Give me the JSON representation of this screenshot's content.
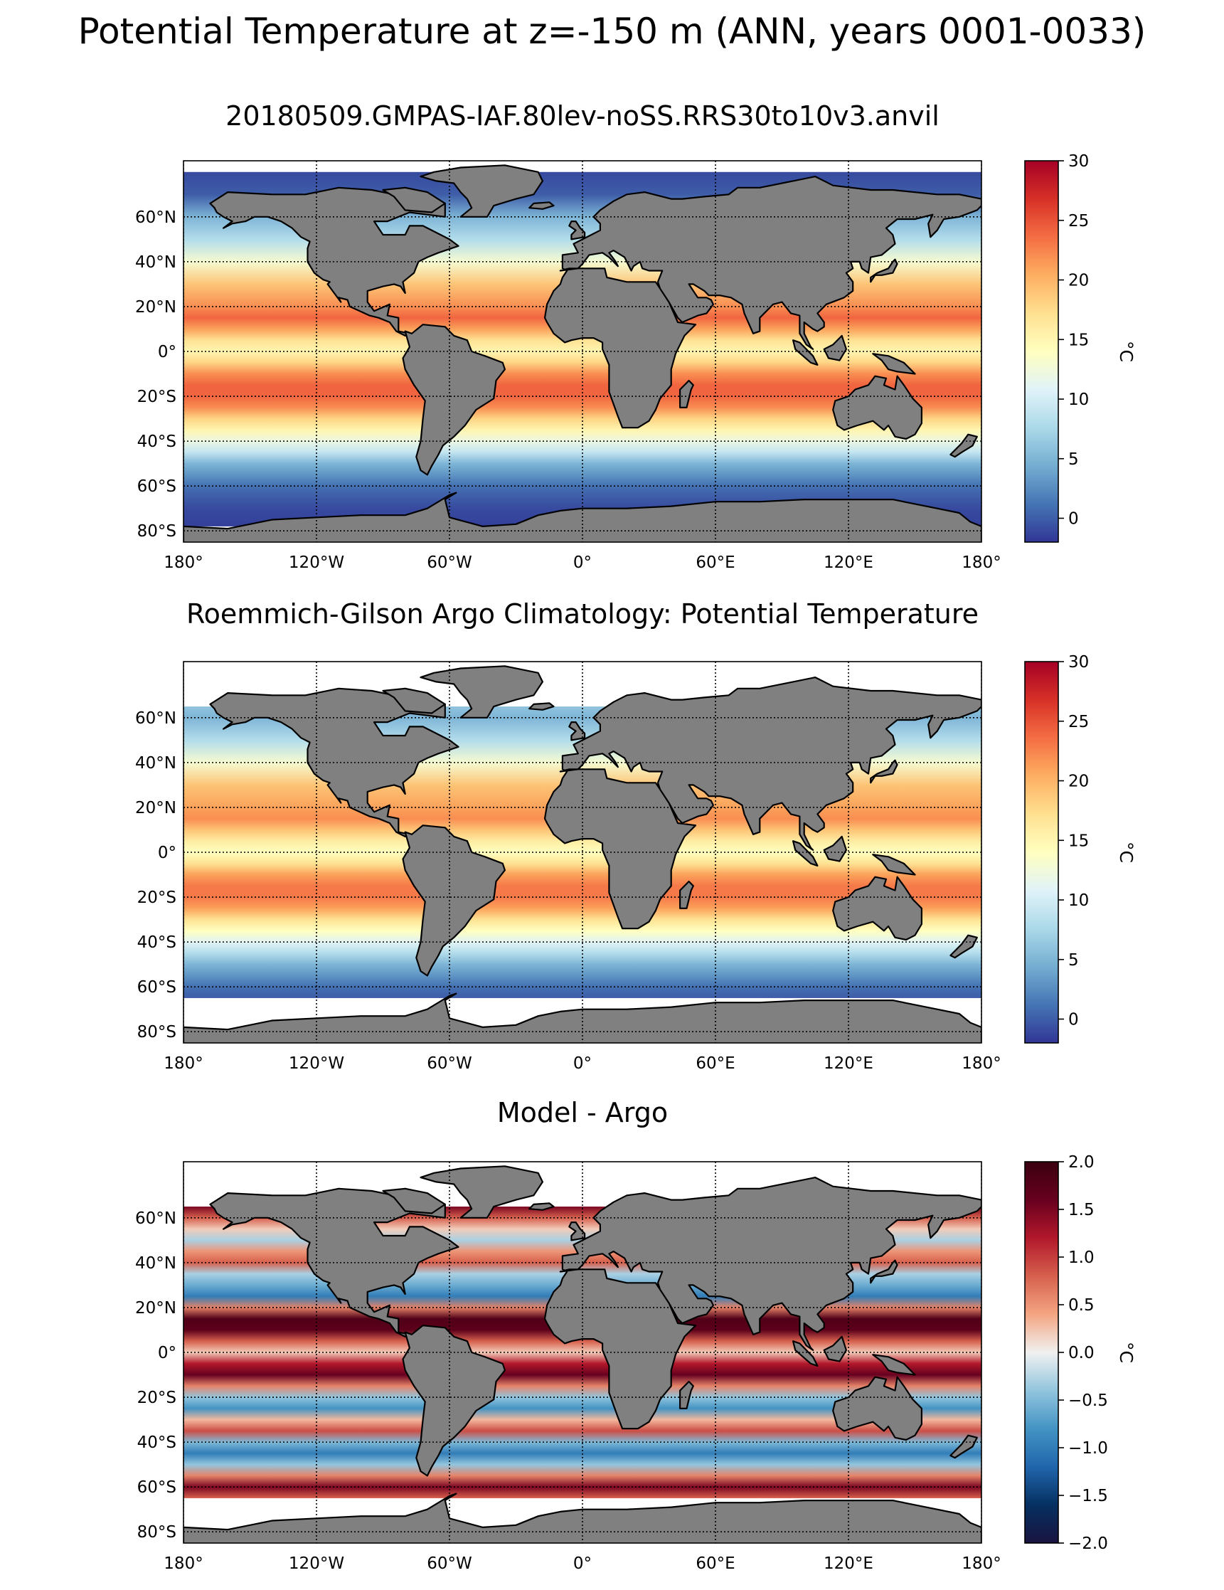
{
  "figure": {
    "suptitle": "Potential Temperature at z=-150 m (ANN, years 0001-0033)"
  },
  "panels": [
    {
      "title": "20180509.GMPAS-IAF.80lev-noSS.RRS30to10v3.anvil",
      "cmap": "RdYlBu_r",
      "vmin": -2,
      "vmax": 30,
      "colorbar_ticks": [
        "30",
        "25",
        "20",
        "15",
        "10",
        "5",
        "0"
      ],
      "colorbar_tick_values": [
        30,
        25,
        20,
        15,
        10,
        5,
        0
      ],
      "colorbar_label": "°C",
      "ice_north_lat": 72
    },
    {
      "title": "Roemmich-Gilson Argo Climatology: Potential Temperature",
      "cmap": "RdYlBu_r",
      "vmin": -2,
      "vmax": 30,
      "colorbar_ticks": [
        "30",
        "25",
        "20",
        "15",
        "10",
        "5",
        "0"
      ],
      "colorbar_tick_values": [
        30,
        25,
        20,
        15,
        10,
        5,
        0
      ],
      "colorbar_label": "°C",
      "data_lat_range": [
        -65,
        65
      ]
    },
    {
      "title": "Model - Argo",
      "cmap": "RdBu_r",
      "vmin": -2.0,
      "vmax": 2.0,
      "colorbar_ticks": [
        "2.0",
        "1.5",
        "1.0",
        "0.5",
        "0.0",
        "−0.5",
        "−1.0",
        "−1.5",
        "−2.0"
      ],
      "colorbar_tick_values": [
        2.0,
        1.5,
        1.0,
        0.5,
        0.0,
        -0.5,
        -1.0,
        -1.5,
        -2.0
      ],
      "colorbar_label": "°C",
      "data_lat_range": [
        -65,
        65
      ]
    }
  ],
  "axes": {
    "x_tick_labels": [
      "180°",
      "120°W",
      "60°W",
      "0°",
      "60°E",
      "120°E",
      "180°"
    ],
    "x_tick_values": [
      -180,
      -120,
      -60,
      0,
      60,
      120,
      180
    ],
    "y_tick_labels": [
      "60°N",
      "40°N",
      "20°N",
      "0°",
      "20°S",
      "40°S",
      "60°S",
      "80°S"
    ],
    "y_tick_values": [
      60,
      40,
      20,
      0,
      -20,
      -40,
      -60,
      -80
    ],
    "xlim": [
      -180,
      180
    ],
    "ylim": [
      -85,
      85
    ],
    "grid": true
  },
  "colors": {
    "land": "#808080",
    "coastline": "#000000",
    "no_data": "#ffffff"
  },
  "chart_data": [
    {
      "type": "heatmap",
      "title": "20180509.GMPAS-IAF.80lev-noSS.RRS30to10v3.anvil",
      "xlim": [
        -180,
        180
      ],
      "ylim": [
        -85,
        85
      ],
      "colorbar": {
        "min": -2,
        "max": 30,
        "label": "°C"
      },
      "zonal_profile": {
        "lat": [
          80,
          70,
          60,
          50,
          40,
          30,
          20,
          15,
          10,
          5,
          0,
          -5,
          -10,
          -15,
          -20,
          -25,
          -30,
          -35,
          -40,
          -45,
          -50,
          -55,
          -60,
          -65,
          -70,
          -78
        ],
        "value": [
          -1,
          0,
          5,
          8,
          13,
          19,
          22,
          24,
          21,
          17,
          15,
          18,
          22,
          24,
          24,
          22,
          18,
          15,
          12,
          9,
          5,
          3,
          1,
          0,
          -1,
          -1.5
        ]
      }
    },
    {
      "type": "heatmap",
      "title": "Roemmich-Gilson Argo Climatology: Potential Temperature",
      "xlim": [
        -180,
        180
      ],
      "ylim": [
        -85,
        85
      ],
      "colorbar": {
        "min": -2,
        "max": 30,
        "label": "°C"
      },
      "zonal_profile": {
        "lat": [
          65,
          60,
          50,
          40,
          30,
          20,
          15,
          10,
          5,
          0,
          -5,
          -10,
          -15,
          -20,
          -25,
          -30,
          -35,
          -40,
          -45,
          -50,
          -55,
          -60,
          -65
        ],
        "value": [
          6,
          5,
          8,
          13,
          19,
          21,
          22,
          19,
          16,
          14,
          17,
          21,
          23,
          23,
          21,
          17,
          14,
          11,
          8,
          5,
          3,
          1,
          0
        ]
      }
    },
    {
      "type": "heatmap",
      "title": "Model - Argo",
      "xlim": [
        -180,
        180
      ],
      "ylim": [
        -85,
        85
      ],
      "colorbar": {
        "min": -2.0,
        "max": 2.0,
        "label": "°C"
      },
      "zonal_profile": {
        "lat": [
          65,
          60,
          55,
          50,
          45,
          40,
          35,
          30,
          25,
          20,
          15,
          10,
          5,
          0,
          -5,
          -10,
          -15,
          -20,
          -25,
          -30,
          -35,
          -40,
          -45,
          -50,
          -55,
          -60,
          -65
        ],
        "value": [
          1.5,
          0.8,
          0.2,
          -0.3,
          0.5,
          0.8,
          -0.3,
          -0.6,
          -1.0,
          0.6,
          1.8,
          1.7,
          0.8,
          0.2,
          1.2,
          1.6,
          0.6,
          -0.4,
          -0.8,
          0.3,
          0.9,
          -0.5,
          -1.0,
          -0.4,
          0.6,
          1.5,
          0.8
        ]
      }
    }
  ]
}
